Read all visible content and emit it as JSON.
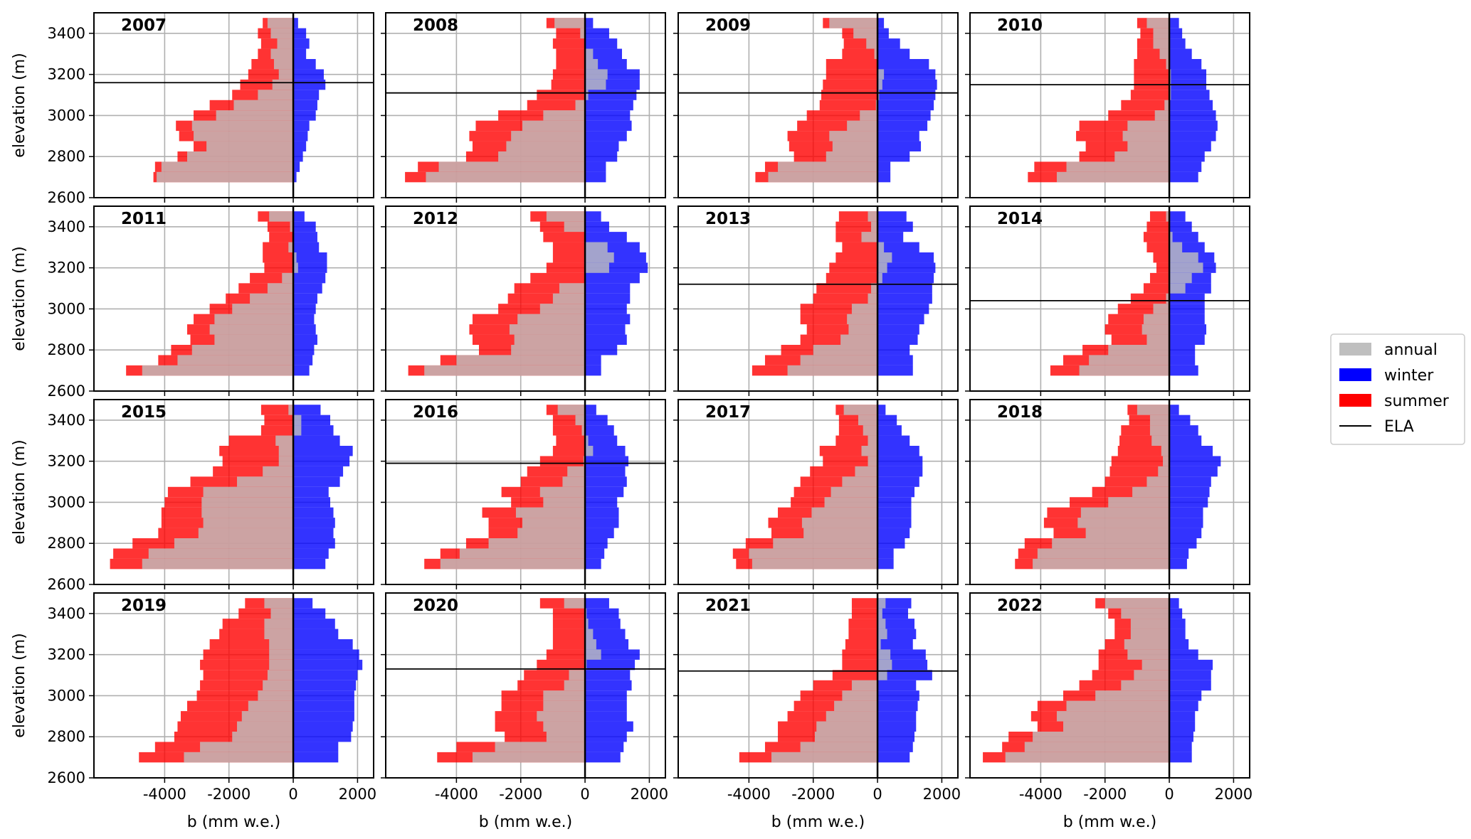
{
  "legend": {
    "placement": "right",
    "entries": [
      {
        "label": "annual",
        "color": "#bfbfbf"
      },
      {
        "label": "winter",
        "color": "#0000ff"
      },
      {
        "label": "summer",
        "color": "#ff0000"
      },
      {
        "label": "ELA",
        "color": "#000000"
      }
    ]
  },
  "axes_common": {
    "xlabel": "b (mm w.e.)",
    "ylabel": "elevation (m)",
    "xlim": [
      -6200,
      2500
    ],
    "ylim": [
      2600,
      3500
    ],
    "xticks": [
      -4000,
      -2000,
      0,
      2000
    ],
    "xtick_labels": [
      "-4000",
      "-2000",
      "0",
      "2000"
    ],
    "yticks": [
      2600,
      2800,
      3000,
      3200,
      3400
    ],
    "ytick_labels": [
      "2600",
      "2800",
      "3000",
      "3200",
      "3400"
    ],
    "grid": true
  },
  "colors": {
    "annual": "#bfbfbf",
    "winter": "#0000ff",
    "summer": "#ff0000",
    "ela": "#000000"
  },
  "chart_data": {
    "type": "bar",
    "orientation": "horizontal",
    "bin_height_m": 50,
    "elevation_bins": [
      3450,
      3400,
      3350,
      3300,
      3250,
      3200,
      3150,
      3100,
      3050,
      3000,
      2950,
      2900,
      2850,
      2800,
      2750,
      2700
    ],
    "panels": [
      {
        "year": "2007",
        "ela": 3160,
        "winter": [
          150,
          400,
          500,
          400,
          700,
          950,
          1000,
          800,
          750,
          700,
          500,
          450,
          400,
          300,
          200,
          100
        ],
        "summer": [
          -950,
          -1100,
          -1000,
          -1100,
          -1300,
          -1400,
          -1650,
          -1900,
          -2600,
          -3100,
          -3650,
          -3550,
          -3100,
          -3600,
          -4300,
          -4350
        ]
      },
      {
        "year": "2008",
        "ela": 3110,
        "winter": [
          250,
          750,
          1000,
          1150,
          1300,
          1700,
          1700,
          1600,
          1500,
          1400,
          1450,
          1300,
          1050,
          1000,
          650,
          650
        ],
        "summer": [
          -1200,
          -900,
          -1000,
          -900,
          -900,
          -1000,
          -1050,
          -1500,
          -1800,
          -2700,
          -3400,
          -3600,
          -3500,
          -3700,
          -5200,
          -5600
        ]
      },
      {
        "year": "2009",
        "ela": 3110,
        "winter": [
          200,
          350,
          700,
          1000,
          1600,
          1800,
          1850,
          1800,
          1750,
          1650,
          1550,
          1300,
          1350,
          1000,
          400,
          400
        ],
        "summer": [
          -1700,
          -1100,
          -1050,
          -1100,
          -1600,
          -1600,
          -1700,
          -1750,
          -1800,
          -2200,
          -2500,
          -2800,
          -2750,
          -2600,
          -3500,
          -3800
        ]
      },
      {
        "year": "2010",
        "ela": 3150,
        "winter": [
          300,
          400,
          500,
          700,
          1000,
          1150,
          1150,
          1250,
          1350,
          1450,
          1500,
          1450,
          1300,
          1100,
          1000,
          900
        ],
        "summer": [
          -1000,
          -900,
          -1000,
          -1000,
          -1100,
          -1100,
          -1100,
          -1200,
          -1500,
          -1900,
          -2800,
          -2900,
          -2600,
          -2800,
          -4200,
          -4400
        ]
      },
      {
        "year": "2011",
        "ela": null,
        "winter": [
          350,
          700,
          750,
          800,
          1050,
          1050,
          1000,
          900,
          750,
          700,
          650,
          700,
          750,
          650,
          600,
          500
        ],
        "summer": [
          -1100,
          -800,
          -750,
          -950,
          -950,
          -900,
          -1350,
          -1700,
          -2100,
          -2600,
          -3100,
          -3300,
          -3200,
          -3800,
          -4200,
          -5200
        ]
      },
      {
        "year": "2012",
        "ela": null,
        "winter": [
          500,
          750,
          1300,
          1700,
          1900,
          1950,
          1700,
          1400,
          1400,
          1300,
          1400,
          1250,
          1300,
          1000,
          500,
          500
        ],
        "summer": [
          -1700,
          -1400,
          -1300,
          -1000,
          -1000,
          -1200,
          -1700,
          -2200,
          -2400,
          -2700,
          -3500,
          -3600,
          -3500,
          -3300,
          -4500,
          -5500
        ]
      },
      {
        "year": "2013",
        "ela": 3120,
        "winter": [
          900,
          1100,
          800,
          1300,
          1750,
          1800,
          1750,
          1700,
          1700,
          1600,
          1450,
          1300,
          1250,
          1000,
          1100,
          1100
        ],
        "summer": [
          -1200,
          -1300,
          -1300,
          -1100,
          -1300,
          -1500,
          -1600,
          -1900,
          -2000,
          -2400,
          -2400,
          -2200,
          -2400,
          -3000,
          -3500,
          -3900
        ]
      },
      {
        "year": "2014",
        "ela": 3040,
        "winter": [
          500,
          700,
          900,
          1100,
          1400,
          1450,
          1300,
          1300,
          1100,
          1100,
          1100,
          1150,
          1100,
          800,
          800,
          900
        ],
        "summer": [
          -600,
          -700,
          -800,
          -700,
          -500,
          -400,
          -600,
          -800,
          -1200,
          -1600,
          -1900,
          -2000,
          -1800,
          -2700,
          -3300,
          -3700
        ]
      },
      {
        "year": "2015",
        "ela": null,
        "winter": [
          850,
          1150,
          1250,
          1450,
          1850,
          1750,
          1550,
          1450,
          1100,
          1150,
          1250,
          1300,
          1250,
          1300,
          1100,
          1000
        ],
        "summer": [
          -1000,
          -900,
          -1000,
          -2000,
          -2300,
          -2200,
          -2500,
          -3200,
          -3900,
          -4000,
          -4100,
          -4100,
          -4200,
          -5000,
          -5600,
          -5700
        ]
      },
      {
        "year": "2016",
        "ela": 3190,
        "winter": [
          350,
          700,
          900,
          1000,
          1250,
          1350,
          1250,
          1300,
          1200,
          1000,
          1050,
          1050,
          900,
          700,
          600,
          500
        ],
        "summer": [
          -1200,
          -1000,
          -1000,
          -900,
          -1000,
          -1400,
          -1800,
          -2000,
          -2600,
          -2300,
          -3200,
          -3000,
          -3000,
          -3700,
          -4500,
          -5000
        ]
      },
      {
        "year": "2017",
        "ela": null,
        "winter": [
          250,
          600,
          750,
          1000,
          1300,
          1400,
          1400,
          1300,
          1150,
          1050,
          1050,
          1050,
          1000,
          850,
          500,
          500
        ],
        "summer": [
          -1300,
          -1200,
          -1200,
          -1300,
          -1800,
          -1700,
          -2100,
          -2400,
          -2600,
          -2700,
          -3100,
          -3400,
          -3300,
          -4100,
          -4500,
          -4400
        ]
      },
      {
        "year": "2018",
        "ela": null,
        "winter": [
          300,
          650,
          900,
          1000,
          1350,
          1600,
          1500,
          1300,
          1250,
          1200,
          1050,
          1050,
          1000,
          850,
          600,
          550
        ],
        "summer": [
          -1300,
          -1250,
          -1500,
          -1550,
          -1600,
          -1800,
          -1850,
          -2000,
          -2400,
          -3100,
          -3800,
          -3900,
          -3600,
          -4500,
          -4700,
          -4800
        ]
      },
      {
        "year": "2019",
        "ela": null,
        "winter": [
          600,
          1000,
          1300,
          1400,
          1850,
          2050,
          2150,
          2000,
          1950,
          1900,
          1900,
          1900,
          1850,
          1800,
          1400,
          1400
        ],
        "summer": [
          -1500,
          -1700,
          -2200,
          -2300,
          -2600,
          -2800,
          -2900,
          -2800,
          -2900,
          -3000,
          -3300,
          -3500,
          -3600,
          -3700,
          -4300,
          -4800
        ]
      },
      {
        "year": "2020",
        "ela": 3130,
        "winter": [
          750,
          1050,
          1100,
          1250,
          1350,
          1700,
          1550,
          1400,
          1450,
          1300,
          1300,
          1300,
          1500,
          1300,
          1200,
          1100
        ],
        "summer": [
          -1400,
          -1000,
          -1000,
          -1000,
          -1000,
          -1200,
          -1500,
          -1900,
          -2100,
          -2600,
          -2600,
          -2800,
          -2800,
          -2500,
          -4000,
          -4600
        ]
      },
      {
        "year": "2021",
        "ela": 3120,
        "winter": [
          1050,
          950,
          1150,
          1200,
          1100,
          1500,
          1550,
          1700,
          1200,
          1300,
          1250,
          1200,
          1200,
          1150,
          1100,
          1000
        ],
        "summer": [
          -800,
          -800,
          -900,
          -900,
          -1000,
          -1100,
          -1100,
          -1400,
          -2000,
          -2400,
          -2600,
          -2800,
          -3100,
          -3100,
          -3500,
          -4300
        ]
      },
      {
        "year": "2022",
        "ela": null,
        "winter": [
          300,
          400,
          500,
          500,
          600,
          900,
          1350,
          1300,
          1300,
          1000,
          900,
          800,
          800,
          750,
          700,
          700
        ],
        "summer": [
          -2300,
          -1900,
          -1700,
          -1700,
          -2000,
          -2200,
          -2200,
          -2400,
          -2800,
          -3300,
          -4100,
          -4300,
          -4100,
          -5000,
          -5200,
          -5800
        ]
      }
    ]
  }
}
